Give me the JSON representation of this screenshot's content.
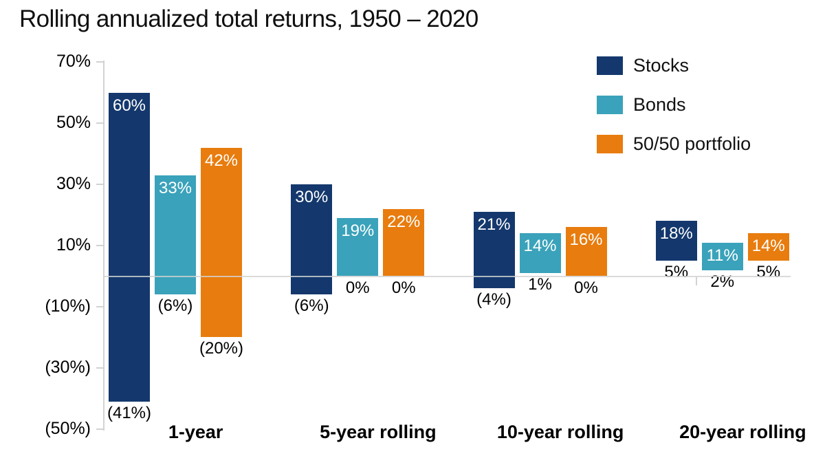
{
  "title": "Rolling annualized total returns, 1950 – 2020",
  "colors": {
    "stocks": "#14386d",
    "bonds": "#3aa2ba",
    "portfolio": "#e87c0e",
    "axis": "#d2d2d2",
    "label_high": "#ffffff",
    "label_low": "#000000"
  },
  "legend": {
    "position": "top-right",
    "items": [
      {
        "label": "Stocks",
        "color": "#14386d"
      },
      {
        "label": "Bonds",
        "color": "#3aa2ba"
      },
      {
        "label": "50/50 portfolio",
        "color": "#e87c0e"
      }
    ]
  },
  "chart_data": {
    "type": "bar",
    "subtype": "floating-range",
    "title": "Rolling annualized total returns, 1950 – 2020",
    "xlabel": "",
    "ylabel": "",
    "ylim": [
      -50,
      70
    ],
    "grid": "zero-line-only",
    "legend_position": "top-right",
    "categories": [
      "1-year",
      "5-year rolling",
      "10-year rolling",
      "20-year rolling"
    ],
    "y_axis": {
      "ticks": [
        {
          "value": 70,
          "label": "70%"
        },
        {
          "value": 50,
          "label": "50%"
        },
        {
          "value": 30,
          "label": "30%"
        },
        {
          "value": 10,
          "label": "10%"
        },
        {
          "value": -10,
          "label": "(10%)"
        },
        {
          "value": -30,
          "label": "(30%)"
        },
        {
          "value": -50,
          "label": "(50%)"
        }
      ]
    },
    "series": [
      {
        "name": "Stocks",
        "color": "#14386d",
        "points": [
          {
            "high": 60,
            "low": -41,
            "high_label": "60%",
            "low_label": "(41%)"
          },
          {
            "high": 30,
            "low": -6,
            "high_label": "30%",
            "low_label": "(6%)"
          },
          {
            "high": 21,
            "low": -4,
            "high_label": "21%",
            "low_label": "(4%)"
          },
          {
            "high": 18,
            "low": 5,
            "high_label": "18%",
            "low_label": "5%"
          }
        ]
      },
      {
        "name": "Bonds",
        "color": "#3aa2ba",
        "points": [
          {
            "high": 33,
            "low": -6,
            "high_label": "33%",
            "low_label": "(6%)"
          },
          {
            "high": 19,
            "low": 0,
            "high_label": "19%",
            "low_label": "0%"
          },
          {
            "high": 14,
            "low": 1,
            "high_label": "14%",
            "low_label": "1%"
          },
          {
            "high": 11,
            "low": 2,
            "high_label": "11%",
            "low_label": "2%"
          }
        ]
      },
      {
        "name": "50/50 portfolio",
        "color": "#e87c0e",
        "points": [
          {
            "high": 42,
            "low": -20,
            "high_label": "42%",
            "low_label": "(20%)"
          },
          {
            "high": 22,
            "low": 0,
            "high_label": "22%",
            "low_label": "0%"
          },
          {
            "high": 16,
            "low": 0,
            "high_label": "16%",
            "low_label": "0%"
          },
          {
            "high": 14,
            "low": 5,
            "high_label": "14%",
            "low_label": "5%"
          }
        ]
      }
    ]
  }
}
